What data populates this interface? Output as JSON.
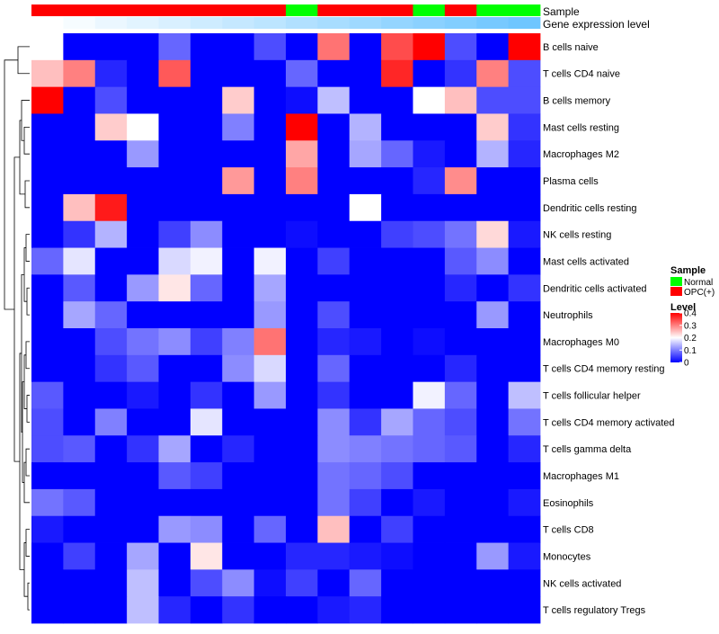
{
  "chart_data": {
    "type": "heatmap",
    "title": "",
    "rows": [
      "B cells naive",
      "T cells CD4 naive",
      "B cells memory",
      "Mast cells resting",
      "Macrophages M2",
      "Plasma cells",
      "Dendritic cells resting",
      "NK cells resting",
      "Mast cells activated",
      "Dendritic cells activated",
      "Neutrophils",
      "Macrophages M0",
      "T cells CD4 memory resting",
      "T cells follicular helper",
      "T cells CD4 memory activated",
      "T cells gamma delta",
      "Macrophages M1",
      "Eosinophils",
      "T cells CD8",
      "Monocytes",
      "NK cells activated",
      "T cells regulatory  Tregs"
    ],
    "values": [
      [
        0.2,
        0,
        0,
        0,
        0.08,
        0,
        0,
        0.06,
        0,
        0.31,
        0,
        0.34,
        0.4,
        0.06,
        0,
        0.4
      ],
      [
        0.25,
        0.3,
        0.03,
        0,
        0.33,
        0,
        0,
        0,
        0.08,
        0,
        0,
        0.37,
        0,
        0.04,
        0.3,
        0.06
      ],
      [
        0.4,
        0,
        0.06,
        0,
        0,
        0,
        0.24,
        0,
        0.01,
        0.15,
        0,
        0,
        0.2,
        0.25,
        0.06,
        0.06
      ],
      [
        0,
        0,
        0.24,
        0.2,
        0,
        0,
        0.1,
        0,
        0.4,
        0,
        0.14,
        0,
        0,
        0,
        0.24,
        0.04
      ],
      [
        0,
        0,
        0,
        0.12,
        0,
        0,
        0,
        0,
        0.27,
        0,
        0.13,
        0.08,
        0.02,
        0,
        0.14,
        0.03
      ],
      [
        0,
        0,
        0,
        0,
        0,
        0,
        0.28,
        0,
        0.3,
        0,
        0,
        0,
        0.03,
        0.29,
        0,
        0
      ],
      [
        0,
        0.25,
        0.38,
        0,
        0,
        0,
        0,
        0,
        0,
        0,
        0.2,
        0,
        0,
        0,
        0,
        0
      ],
      [
        0,
        0.04,
        0.14,
        0,
        0.05,
        0.11,
        0,
        0,
        0.01,
        0,
        0,
        0.05,
        0.06,
        0.09,
        0.23,
        0.02
      ],
      [
        0.08,
        0.18,
        0,
        0,
        0.17,
        0.19,
        0,
        0.19,
        0,
        0.05,
        0,
        0,
        0,
        0.07,
        0.11,
        0
      ],
      [
        0,
        0.07,
        0,
        0.12,
        0.22,
        0.08,
        0,
        0.13,
        0,
        0,
        0,
        0,
        0,
        0.03,
        0,
        0.04
      ],
      [
        0,
        0.13,
        0.08,
        0,
        0,
        0,
        0,
        0.12,
        0,
        0.06,
        0,
        0,
        0,
        0,
        0.12,
        0
      ],
      [
        0,
        0,
        0.06,
        0.09,
        0.11,
        0.05,
        0.1,
        0.31,
        0,
        0.03,
        0.02,
        0,
        0.01,
        0,
        0,
        0
      ],
      [
        0,
        0,
        0.04,
        0.07,
        0,
        0,
        0.11,
        0.17,
        0,
        0.08,
        0,
        0,
        0,
        0.03,
        0,
        0
      ],
      [
        0.07,
        0,
        0,
        0.02,
        0,
        0.04,
        0,
        0.12,
        0,
        0.04,
        0,
        0,
        0.19,
        0.08,
        0,
        0.15
      ],
      [
        0.06,
        0,
        0.1,
        0,
        0,
        0.18,
        0,
        0,
        0,
        0.11,
        0.04,
        0.13,
        0.08,
        0.06,
        0,
        0.09
      ],
      [
        0.06,
        0.07,
        0,
        0.04,
        0.13,
        0,
        0.03,
        0,
        0,
        0.11,
        0.1,
        0.09,
        0.08,
        0.07,
        0,
        0.03
      ],
      [
        0,
        0,
        0,
        0,
        0.07,
        0.05,
        0,
        0,
        0,
        0.09,
        0.08,
        0.06,
        0,
        0,
        0,
        0
      ],
      [
        0.09,
        0.07,
        0,
        0,
        0,
        0,
        0,
        0,
        0,
        0.09,
        0.05,
        0,
        0.02,
        0,
        0,
        0.02
      ],
      [
        0.02,
        0,
        0,
        0,
        0.12,
        0.11,
        0,
        0.08,
        0,
        0.25,
        0,
        0.05,
        0,
        0,
        0,
        0
      ],
      [
        0,
        0.05,
        0,
        0.13,
        0,
        0.22,
        0,
        0,
        0.03,
        0.03,
        0.02,
        0.01,
        0,
        0,
        0.12,
        0.02
      ],
      [
        0,
        0,
        0,
        0.15,
        0,
        0.06,
        0.11,
        0.01,
        0.05,
        0,
        0.08,
        0,
        0,
        0,
        0,
        0
      ],
      [
        0,
        0,
        0,
        0.15,
        0.03,
        0,
        0.04,
        0,
        0,
        0.02,
        0.03,
        0,
        0,
        0,
        0,
        0
      ]
    ],
    "annotations": [
      {
        "name": "Sample",
        "values": [
          "OPC(+)",
          "OPC(+)",
          "OPC(+)",
          "OPC(+)",
          "OPC(+)",
          "OPC(+)",
          "OPC(+)",
          "OPC(+)",
          "Normal",
          "OPC(+)",
          "OPC(+)",
          "OPC(+)",
          "Normal",
          "OPC(+)",
          "Normal",
          "Normal"
        ]
      },
      {
        "name": "Gene expression level",
        "values": [
          0.0,
          0.03,
          0.07,
          0.1,
          0.13,
          0.17,
          0.2,
          0.23,
          0.27,
          0.3,
          0.33,
          0.37,
          0.4,
          0.43,
          0.47,
          0.5
        ]
      }
    ],
    "legend": {
      "position": "right",
      "sample_title": "Sample",
      "sample_items": [
        {
          "label": "Normal",
          "color": "#00ff00"
        },
        {
          "label": "OPC(+)",
          "color": "#ff0000"
        }
      ],
      "level_title": "Level",
      "level_ticks": [
        "0.4",
        "0.3",
        "0.2",
        "0.1",
        "0"
      ],
      "level_tick_values": [
        0.4,
        0.3,
        0.2,
        0.1,
        0
      ]
    },
    "color_scale": {
      "low": "#0000ff",
      "mid": "#ffffff",
      "high": "#ff0000",
      "min": 0,
      "mid_value": 0.2,
      "max": 0.4
    },
    "gene_level_colors": {
      "low": "#ffffff",
      "high": "#6ec6ff"
    },
    "dendrogram": "rows"
  }
}
